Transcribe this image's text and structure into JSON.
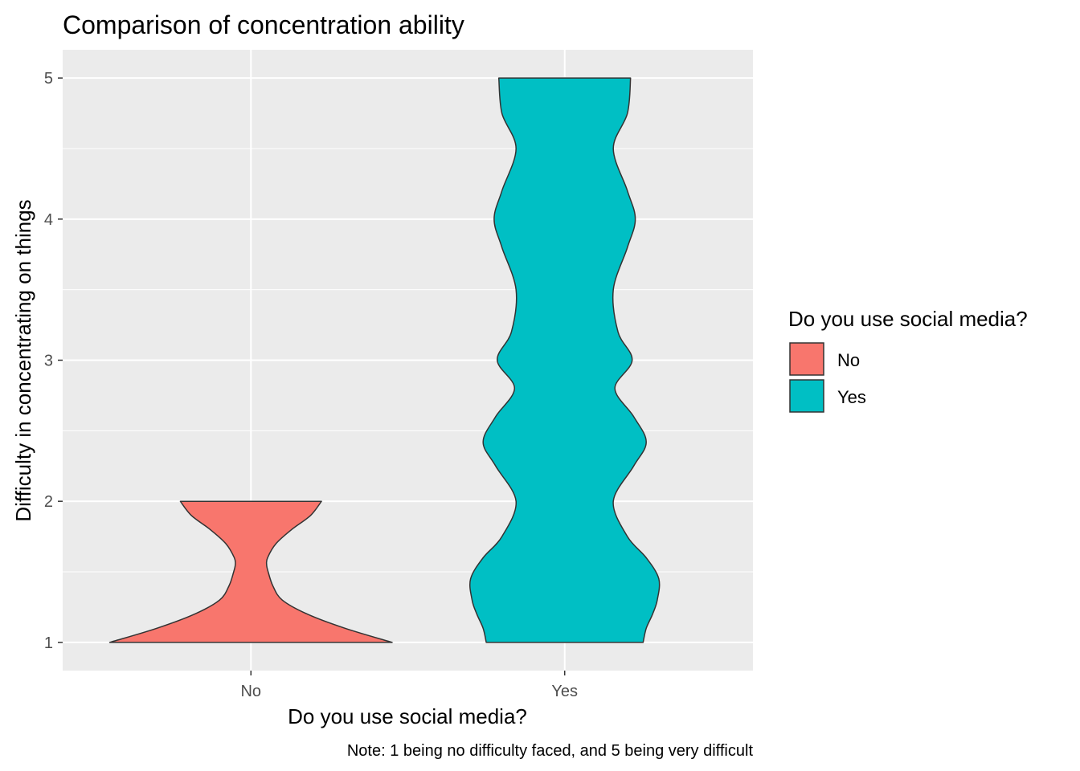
{
  "chart_data": {
    "type": "violin",
    "title": "Comparison of concentration ability",
    "xlabel": "Do you use social media?",
    "ylabel": "Difficulty in concentrating on things",
    "caption": "Note: 1 being no difficulty faced, and 5 being very difficult",
    "categories": [
      "No",
      "Yes"
    ],
    "ylim": [
      0.8,
      5.2
    ],
    "yticks": [
      "1",
      "2",
      "3",
      "4",
      "5"
    ],
    "grid": true,
    "legend": {
      "title": "Do you use social media?",
      "placement": "right",
      "entries": [
        "No",
        "Yes"
      ]
    },
    "colors": {
      "No": "#F8766D",
      "Yes": "#00BFC4",
      "panel": "#EBEBEB",
      "grid": "#FFFFFF",
      "outline": "#333333"
    },
    "series": [
      {
        "category": "No",
        "density_half_width": [
          [
            1.0,
            0.45
          ],
          [
            1.1,
            0.3
          ],
          [
            1.2,
            0.18
          ],
          [
            1.3,
            0.1
          ],
          [
            1.4,
            0.07
          ],
          [
            1.5,
            0.055
          ],
          [
            1.55,
            0.05
          ],
          [
            1.6,
            0.053
          ],
          [
            1.7,
            0.08
          ],
          [
            1.8,
            0.13
          ],
          [
            1.9,
            0.19
          ],
          [
            2.0,
            0.225
          ]
        ]
      },
      {
        "category": "Yes",
        "density_half_width": [
          [
            1.0,
            0.25
          ],
          [
            1.1,
            0.26
          ],
          [
            1.2,
            0.28
          ],
          [
            1.3,
            0.295
          ],
          [
            1.45,
            0.3
          ],
          [
            1.6,
            0.26
          ],
          [
            1.75,
            0.2
          ],
          [
            2.0,
            0.155
          ],
          [
            2.25,
            0.22
          ],
          [
            2.42,
            0.26
          ],
          [
            2.6,
            0.22
          ],
          [
            2.8,
            0.16
          ],
          [
            3.0,
            0.215
          ],
          [
            3.2,
            0.17
          ],
          [
            3.5,
            0.155
          ],
          [
            3.8,
            0.2
          ],
          [
            4.0,
            0.225
          ],
          [
            4.2,
            0.2
          ],
          [
            4.5,
            0.155
          ],
          [
            4.75,
            0.2
          ],
          [
            5.0,
            0.21
          ]
        ]
      }
    ]
  }
}
